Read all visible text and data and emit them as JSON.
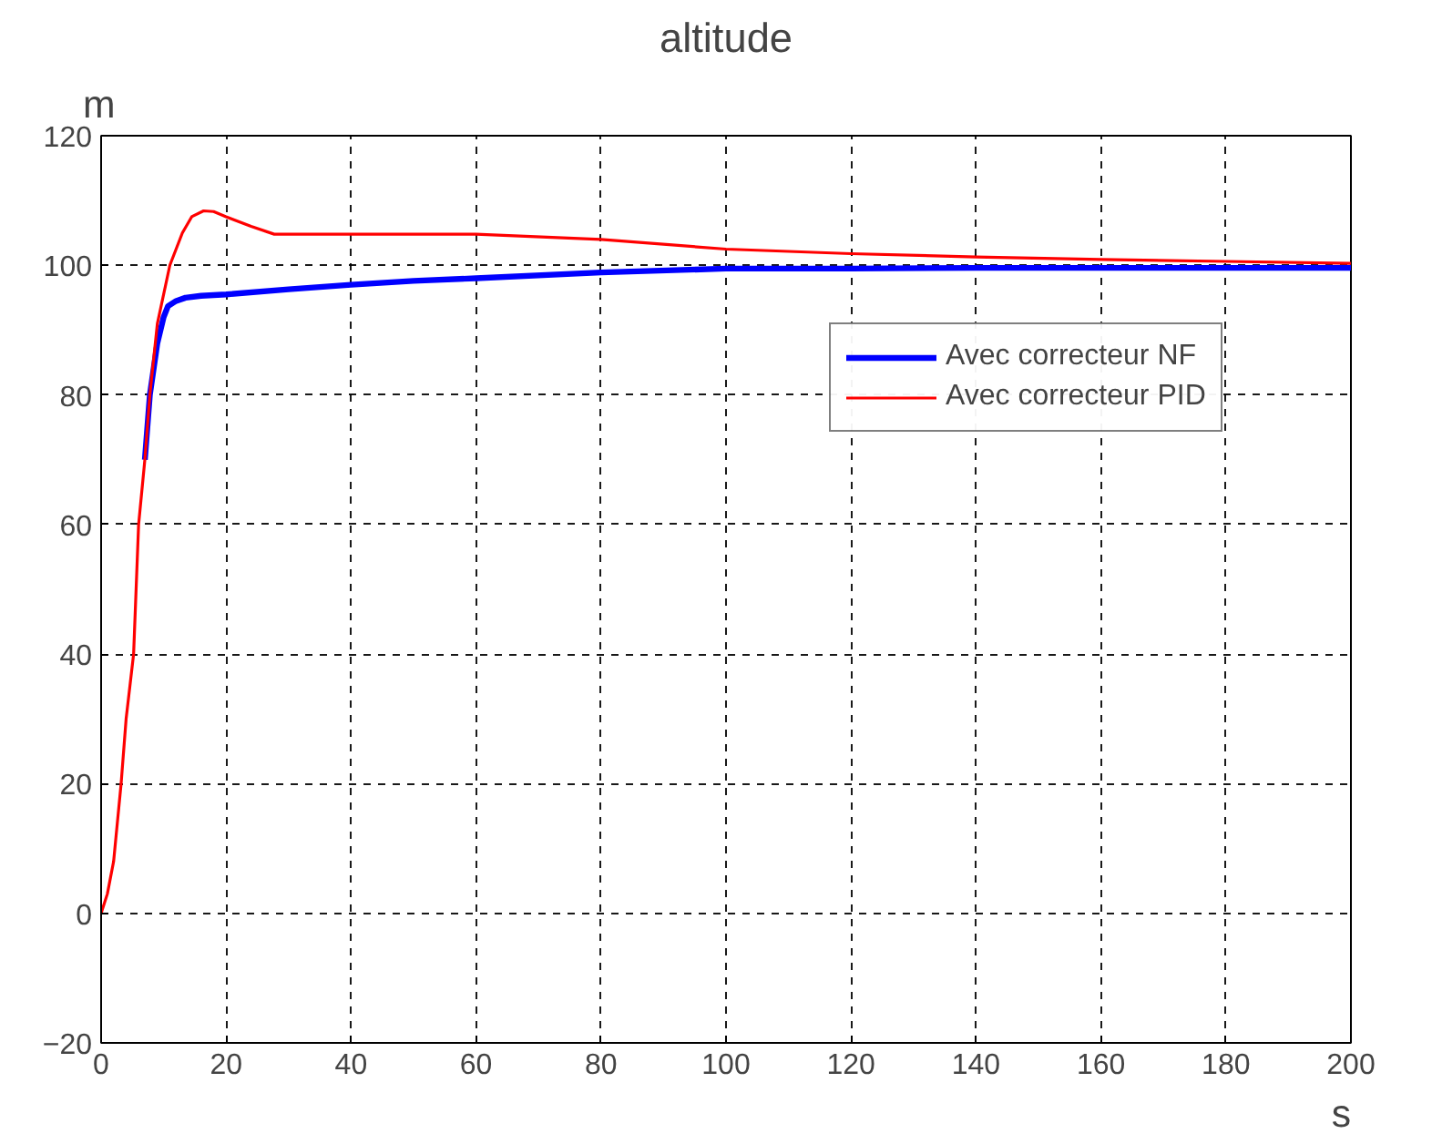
{
  "chart_data": {
    "type": "line",
    "title": "altitude",
    "xlabel": "s",
    "ylabel": "m",
    "xlim": [
      0,
      200
    ],
    "ylim": [
      -20,
      120
    ],
    "xticks": [
      0,
      20,
      40,
      60,
      80,
      100,
      120,
      140,
      160,
      180,
      200
    ],
    "yticks": [
      -20,
      0,
      20,
      40,
      60,
      80,
      100,
      120
    ],
    "grid": true,
    "legend": "top right",
    "line_style": "solid",
    "series": [
      {
        "name": "Avec correcteur NF",
        "color": "#0000ff",
        "x": [
          7,
          7.8,
          9,
          10,
          10.7,
          12,
          13.5,
          16,
          20,
          30,
          40,
          50,
          60,
          80,
          100,
          120,
          140,
          160,
          180,
          200
        ],
        "values": [
          70,
          80,
          88,
          92,
          93.7,
          94.5,
          95,
          95.3,
          95.5,
          96.3,
          97,
          97.6,
          98,
          98.9,
          99.5,
          99.5,
          99.6,
          99.6,
          99.6,
          99.6
        ]
      },
      {
        "name": "Avec correcteur PID",
        "color": "#ff0000",
        "x": [
          0,
          1,
          2,
          3.2,
          4,
          5.2,
          6,
          7,
          7.8,
          9,
          11,
          13,
          14.5,
          16.4,
          18,
          20,
          24,
          27.7,
          40,
          60,
          80,
          100,
          120,
          140,
          160,
          180,
          200
        ],
        "values": [
          0,
          3,
          8,
          20,
          30,
          40,
          60,
          70,
          80,
          91,
          100,
          105,
          107.5,
          108.4,
          108.3,
          107.5,
          106,
          104.8,
          104.8,
          104.8,
          104,
          102.5,
          101.8,
          101.3,
          100.9,
          100.6,
          100.3
        ]
      }
    ]
  }
}
